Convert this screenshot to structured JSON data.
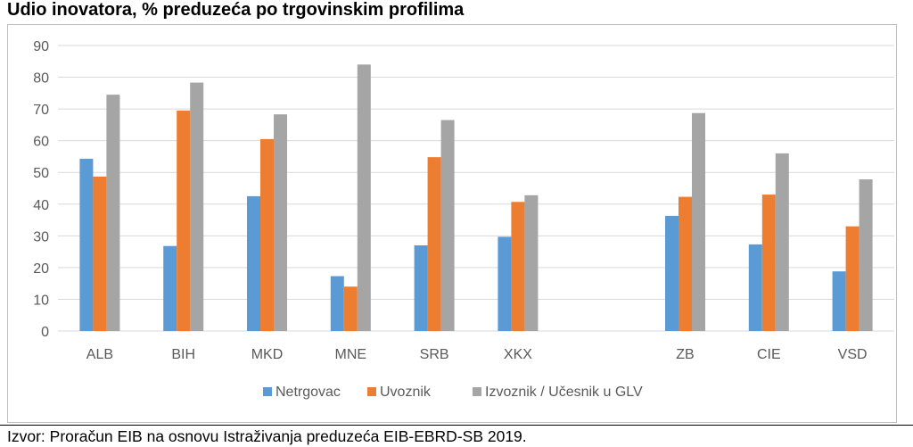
{
  "title": "Udio inovatora, % preduzeća po trgovinskim profilima",
  "source": "Izvor: Proračun EIB na osnovu Istraživanja preduzeća EIB-EBRD-SB 2019.",
  "colors": {
    "Netrgovac": "#5b9bd5",
    "Uvoznik": "#ed7d31",
    "Izvoznik / Učesnik u GLV": "#a5a5a5",
    "grid": "#d9d9d9",
    "axis_text": "#595959"
  },
  "chart_data": {
    "type": "bar",
    "title": "Udio inovatora, % preduzeća po trgovinskim profilima",
    "xlabel": "",
    "ylabel": "",
    "ylim": [
      0,
      90
    ],
    "yticks": [
      0,
      10,
      20,
      30,
      40,
      50,
      60,
      70,
      80,
      90
    ],
    "grid": true,
    "legend_position": "bottom",
    "categories": [
      "ALB",
      "BIH",
      "MKD",
      "MNE",
      "SRB",
      "XKX",
      "",
      "ZB",
      "CIE",
      "VSD"
    ],
    "series": [
      {
        "name": "Netrgovac",
        "values": [
          54.3,
          26.8,
          42.5,
          17.3,
          27.0,
          29.7,
          null,
          36.3,
          27.3,
          18.8
        ]
      },
      {
        "name": "Uvoznik",
        "values": [
          48.7,
          69.5,
          60.5,
          14.0,
          54.8,
          40.7,
          null,
          42.3,
          43.0,
          33.0
        ]
      },
      {
        "name": "Izvoznik / Učesnik u GLV",
        "values": [
          74.5,
          78.3,
          68.3,
          84.0,
          66.5,
          42.8,
          null,
          68.7,
          56.0,
          47.8
        ]
      }
    ]
  }
}
